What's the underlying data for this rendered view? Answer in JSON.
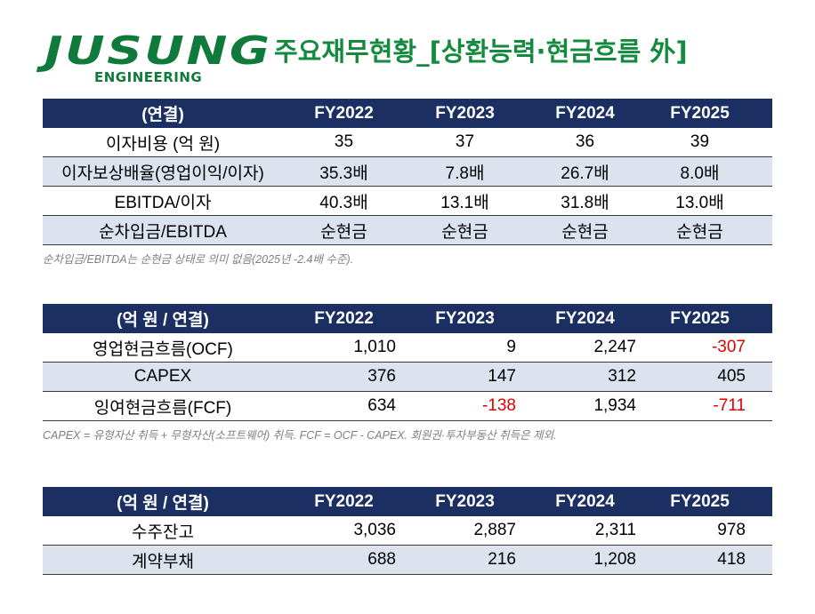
{
  "header": {
    "logo": "JUSUNG",
    "logo_sub": "ENGINEERING",
    "title": "주요재무현황_[상환능력·현금흐름 外]"
  },
  "tables": [
    {
      "align": "center",
      "header": [
        "(연결)",
        "FY2022",
        "FY2023",
        "FY2024",
        "FY2025"
      ],
      "rows": [
        [
          "이자비용 (억 원)",
          "35",
          "37",
          "36",
          "39"
        ],
        [
          "이자보상배율(영업이익/이자)",
          "35.3배",
          "7.8배",
          "26.7배",
          "8.0배"
        ],
        [
          "EBITDA/이자",
          "40.3배",
          "13.1배",
          "31.8배",
          "13.0배"
        ],
        [
          "순차입금/EBITDA",
          "순현금",
          "순현금",
          "순현금",
          "순현금"
        ]
      ],
      "note": "순차입금/EBITDA는 순현금 상태로 의미 없음(2025년 -2.4배 수준)."
    },
    {
      "align": "right",
      "header": [
        "(억 원 / 연결)",
        "FY2022",
        "FY2023",
        "FY2024",
        "FY2025"
      ],
      "rows": [
        [
          "영업현금흐름(OCF)",
          "1,010",
          "9",
          "2,247",
          "-307"
        ],
        [
          "CAPEX",
          "376",
          "147",
          "312",
          "405"
        ],
        [
          "잉여현금흐름(FCF)",
          "634",
          "-138",
          "1,934",
          "-711"
        ]
      ],
      "note": "CAPEX = 유형자산 취득 + 무형자산(소프트웨어) 취득. FCF = OCF - CAPEX. 회원권·투자부동산 취득은 제외."
    },
    {
      "align": "right",
      "header": [
        "(억 원 / 연결)",
        "FY2022",
        "FY2023",
        "FY2024",
        "FY2025"
      ],
      "rows": [
        [
          "수주잔고",
          "3,036",
          "2,887",
          "2,311",
          "978"
        ],
        [
          "계약부채",
          "688",
          "216",
          "1,208",
          "418"
        ]
      ]
    }
  ]
}
